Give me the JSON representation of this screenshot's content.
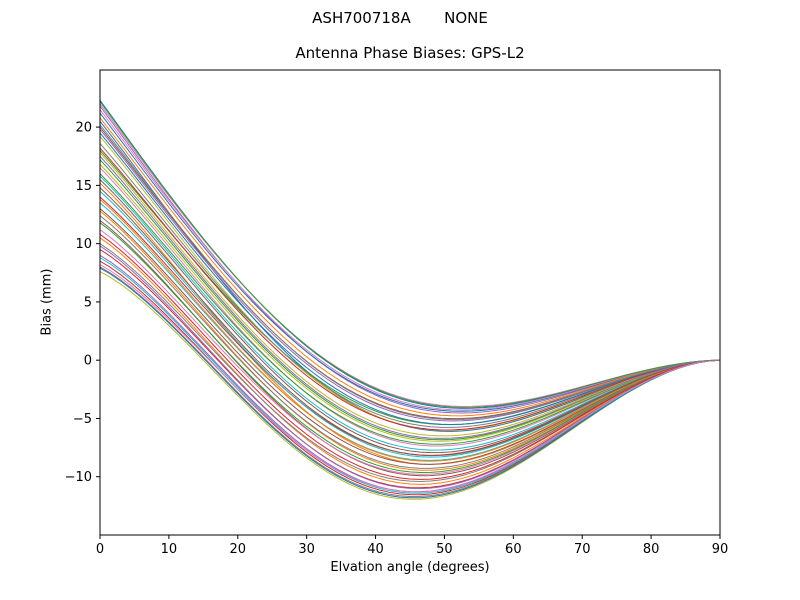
{
  "chart_data": {
    "type": "line",
    "suptitle": "ASH700718A       NONE",
    "title": "Antenna Phase Biases: GPS-L2",
    "xlabel": "Elvation angle (degrees)",
    "ylabel": "Bias (mm)",
    "xlim": [
      0,
      90
    ],
    "ylim": [
      -15,
      24.9
    ],
    "x_ticks": [
      0,
      10,
      20,
      30,
      40,
      50,
      60,
      70,
      80,
      90
    ],
    "y_ticks": [
      -10,
      -5,
      0,
      5,
      10,
      15,
      20
    ],
    "y_tick_labels": [
      "−10",
      "−5",
      "0",
      "5",
      "10",
      "15",
      "20"
    ],
    "grid": false,
    "legend": null,
    "background": "#ffffff",
    "spine_color": "#000000",
    "line_width": 1,
    "colors": [
      "#1f77b4",
      "#ff7f0e",
      "#2ca02c",
      "#d62728",
      "#9467bd",
      "#8c564b",
      "#e377c2",
      "#7f7f7f",
      "#bcbd22",
      "#17becf"
    ],
    "description": "Ensemble of ~48 unlabeled antenna phase-bias curves. Each starts at a positive bias at 0 deg elevation, descends through zero near 20-25 deg, reaches a minimum near 40-50 deg, and converges back to 0 mm at 90 deg.",
    "envelope_mm": {
      "x": [
        0,
        10,
        20,
        30,
        40,
        50,
        60,
        70,
        80,
        90
      ],
      "bottom": [
        7.6,
        3.0,
        -3.1,
        -8.4,
        -11.5,
        -11.7,
        -9.2,
        -5.3,
        -1.7,
        0.0
      ],
      "top": [
        22.3,
        14.3,
        7.1,
        1.4,
        -2.3,
        -3.9,
        -3.6,
        -2.3,
        -0.8,
        0.0
      ]
    },
    "model": {
      "formula": "bias(x) = start_mm * ((90-x)/90)^3.2 + min_mm * sin(pi*(x/90)^0.95)^1.8",
      "decay_pow": 3.2,
      "bump_u_pow": 0.95,
      "bump_sin_pow": 1.8,
      "x_step": 1.5
    },
    "series_keys": [
      "start_bias_mm",
      "min_bias_mm"
    ],
    "series": [
      [
        20.5,
        -8.0
      ],
      [
        15.2,
        -10.5
      ],
      [
        18.0,
        -7.2
      ],
      [
        9.5,
        -12.0
      ],
      [
        21.8,
        -6.4
      ],
      [
        12.0,
        -11.2
      ],
      [
        16.5,
        -9.0
      ],
      [
        8.0,
        -12.6
      ],
      [
        19.2,
        -7.8
      ],
      [
        13.5,
        -10.0
      ],
      [
        22.3,
        -6.0
      ],
      [
        10.5,
        -11.8
      ],
      [
        17.2,
        -8.5
      ],
      [
        14.0,
        -9.6
      ],
      [
        9.0,
        -12.3
      ],
      [
        20.0,
        -6.8
      ],
      [
        11.2,
        -11.0
      ],
      [
        18.6,
        -7.5
      ],
      [
        7.6,
        -12.8
      ],
      [
        15.8,
        -9.3
      ],
      [
        21.2,
        -6.2
      ],
      [
        12.8,
        -10.8
      ],
      [
        16.0,
        -8.8
      ],
      [
        8.5,
        -12.5
      ],
      [
        19.8,
        -7.0
      ],
      [
        13.0,
        -10.3
      ],
      [
        22.0,
        -5.8
      ],
      [
        10.0,
        -11.5
      ],
      [
        17.8,
        -8.2
      ],
      [
        14.5,
        -9.8
      ],
      [
        7.9,
        -12.7
      ],
      [
        20.8,
        -6.6
      ],
      [
        11.8,
        -10.9
      ],
      [
        18.2,
        -7.7
      ],
      [
        9.8,
        -12.1
      ],
      [
        15.5,
        -9.5
      ],
      [
        21.5,
        -6.1
      ],
      [
        12.4,
        -10.6
      ],
      [
        16.8,
        -8.6
      ],
      [
        8.8,
        -12.4
      ],
      [
        19.5,
        -7.3
      ],
      [
        13.8,
        -10.1
      ],
      [
        22.2,
        -5.9
      ],
      [
        10.8,
        -11.4
      ],
      [
        17.5,
        -8.4
      ],
      [
        14.8,
        -9.7
      ],
      [
        8.2,
        -12.2
      ],
      [
        20.2,
        -6.9
      ]
    ]
  }
}
